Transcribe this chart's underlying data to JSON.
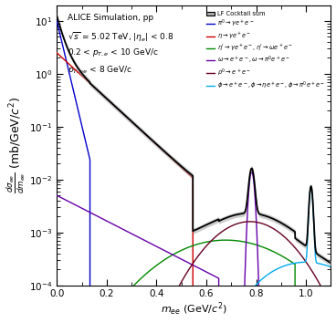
{
  "title_text": "ALICE Simulation, pp",
  "subtitle1": "$\\sqrt{s}$ = 5.02 TeV, $|\\eta_e|$ < 0.8",
  "subtitle2": "0.2 < $p_{T,e}$ < 10 GeV/c",
  "subtitle3": "$p_{T,ee}$ < 8 GeV/c",
  "xlabel": "$m_{ee}$ (GeV/$c^2$)",
  "ylabel": "$\\frac{d\\sigma_{ee}}{dm_{ee}}$ (mb/GeV/$c^2$)",
  "xlim": [
    0.0,
    1.1
  ],
  "background_color": "#ffffff",
  "legend_entries": [
    "LF Cocktail sum",
    "$\\pi^0 \\rightarrow \\gamma e^+e^-$",
    "$\\eta \\rightarrow \\gamma e^+e^-$",
    "$\\eta^\\prime \\rightarrow \\gamma e^+e^-, \\eta^\\prime \\rightarrow \\omega e^+e^-$",
    "$\\omega \\rightarrow e^+e^-, \\omega \\rightarrow \\pi^0 e^+e^-$",
    "$\\rho^0 \\rightarrow e^+e^-$",
    "$\\phi \\rightarrow e^+e^-, \\phi \\rightarrow \\eta e^+e^-, \\phi \\rightarrow \\pi^0 e^+e^-$"
  ],
  "line_colors": {
    "cocktail": "#000000",
    "cocktail_band": "#aaaaaa",
    "pi0": "#0000cc",
    "eta": "#cc0000",
    "etaprime": "#008800",
    "omega": "#6600aa",
    "rho": "#660022",
    "phi": "#00aaee"
  }
}
